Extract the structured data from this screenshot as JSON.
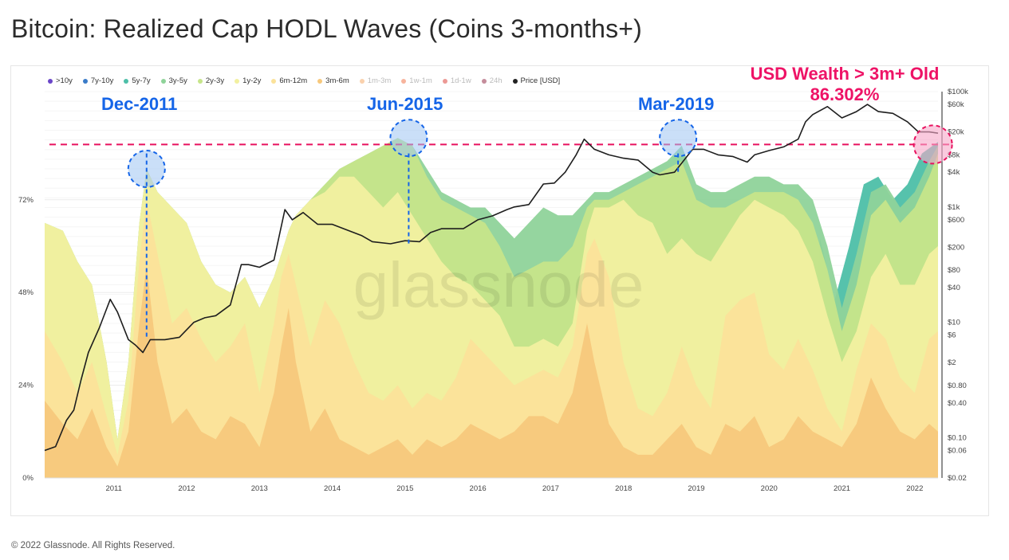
{
  "title": "Bitcoin: Realized Cap HODL Waves (Coins 3-months+)",
  "footer": "© 2022 Glassnode. All Rights Reserved.",
  "watermark": "glassnode",
  "legend": [
    {
      "label": ">10y",
      "color": "#6a45c8",
      "active": true
    },
    {
      "label": "7y-10y",
      "color": "#3a7bc8",
      "active": true
    },
    {
      "label": "5y-7y",
      "color": "#4dbfa8",
      "active": true
    },
    {
      "label": "3y-5y",
      "color": "#8fd39a",
      "active": true
    },
    {
      "label": "2y-3y",
      "color": "#c6e58a",
      "active": true
    },
    {
      "label": "1y-2y",
      "color": "#f2f0a0",
      "active": true
    },
    {
      "label": "6m-12m",
      "color": "#fbe29a",
      "active": true
    },
    {
      "label": "3m-6m",
      "color": "#f7c87c",
      "active": true
    },
    {
      "label": "1m-3m",
      "color": "#f5a35c",
      "active": false
    },
    {
      "label": "1w-1m",
      "color": "#f06a3b",
      "active": false
    },
    {
      "label": "1d-1w",
      "color": "#d9342b",
      "active": false
    },
    {
      "label": "24h",
      "color": "#8b1c3a",
      "active": false
    },
    {
      "label": "Price [USD]",
      "color": "#222222",
      "active": true
    }
  ],
  "annotations": {
    "dec2011": "Dec-2011",
    "jun2015": "Jun-2015",
    "mar2019": "Mar-2019",
    "wealth_line1": "USD Wealth > 3m+ Old",
    "wealth_line2": "86.302%"
  },
  "chart_data": {
    "type": "area",
    "title": "Bitcoin: Realized Cap HODL Waves (Coins 3-months+)",
    "x_ticks": [
      "2011",
      "2012",
      "2013",
      "2014",
      "2015",
      "2016",
      "2017",
      "2018",
      "2019",
      "2020",
      "2021",
      "2022"
    ],
    "x_range": [
      2010.55,
      2022.82
    ],
    "y_left_ticks": [
      "0%",
      "24%",
      "48%",
      "72%"
    ],
    "y_left_range": [
      0,
      100
    ],
    "y_right_ticks": [
      "$100k",
      "$60k",
      "$20k",
      "$8k",
      "$4k",
      "$1k",
      "$600",
      "$200",
      "$80",
      "$40",
      "$10",
      "$6",
      "$2",
      "$0.80",
      "$0.40",
      "$0.10",
      "$0.06",
      "$0.02"
    ],
    "y_right_range": [
      0.02,
      100000
    ],
    "threshold_pct": 86.302,
    "bands": [
      {
        "name": "3m-6m",
        "color": "#f7c87c",
        "x": [
          2010.55,
          2010.8,
          2011.0,
          2011.2,
          2011.4,
          2011.55,
          2011.7,
          2011.85,
          2011.95,
          2012.1,
          2012.3,
          2012.5,
          2012.7,
          2012.9,
          2013.1,
          2013.3,
          2013.5,
          2013.7,
          2013.8,
          2013.9,
          2014.0,
          2014.2,
          2014.4,
          2014.6,
          2014.8,
          2015.0,
          2015.2,
          2015.4,
          2015.6,
          2015.8,
          2016.0,
          2016.2,
          2016.4,
          2016.6,
          2016.8,
          2017.0,
          2017.2,
          2017.4,
          2017.6,
          2017.8,
          2018.0,
          2018.1,
          2018.3,
          2018.5,
          2018.7,
          2018.9,
          2019.1,
          2019.3,
          2019.5,
          2019.7,
          2019.9,
          2020.1,
          2020.3,
          2020.5,
          2020.7,
          2020.9,
          2021.1,
          2021.3,
          2021.5,
          2021.7,
          2021.9,
          2022.1,
          2022.3,
          2022.5,
          2022.7,
          2022.82
        ],
        "y": [
          20,
          14,
          10,
          18,
          8,
          3,
          12,
          40,
          55,
          30,
          14,
          18,
          12,
          10,
          16,
          14,
          8,
          22,
          34,
          44,
          30,
          12,
          18,
          10,
          8,
          6,
          8,
          10,
          6,
          10,
          8,
          10,
          14,
          12,
          10,
          12,
          16,
          16,
          14,
          22,
          40,
          30,
          14,
          8,
          6,
          6,
          10,
          14,
          8,
          6,
          14,
          12,
          16,
          8,
          10,
          16,
          12,
          10,
          8,
          14,
          26,
          18,
          12,
          10,
          14,
          12
        ]
      },
      {
        "name": "6m-12m",
        "color": "#fbe29a",
        "x": [
          2010.55,
          2010.8,
          2011.0,
          2011.2,
          2011.4,
          2011.55,
          2011.7,
          2011.85,
          2011.95,
          2012.1,
          2012.3,
          2012.5,
          2012.7,
          2012.9,
          2013.1,
          2013.3,
          2013.5,
          2013.7,
          2013.8,
          2013.9,
          2014.0,
          2014.2,
          2014.4,
          2014.6,
          2014.8,
          2015.0,
          2015.2,
          2015.4,
          2015.6,
          2015.8,
          2016.0,
          2016.2,
          2016.4,
          2016.6,
          2016.8,
          2017.0,
          2017.2,
          2017.4,
          2017.6,
          2017.8,
          2018.0,
          2018.1,
          2018.3,
          2018.5,
          2018.7,
          2018.9,
          2019.1,
          2019.3,
          2019.5,
          2019.7,
          2019.9,
          2020.1,
          2020.3,
          2020.5,
          2020.7,
          2020.9,
          2021.1,
          2021.3,
          2021.5,
          2021.7,
          2021.9,
          2022.1,
          2022.3,
          2022.5,
          2022.7,
          2022.82
        ],
        "y": [
          38,
          30,
          22,
          30,
          16,
          6,
          20,
          56,
          72,
          58,
          40,
          44,
          36,
          30,
          34,
          40,
          22,
          40,
          52,
          58,
          50,
          34,
          46,
          40,
          30,
          22,
          20,
          24,
          18,
          22,
          20,
          26,
          36,
          32,
          28,
          24,
          26,
          28,
          26,
          34,
          58,
          62,
          52,
          30,
          18,
          16,
          22,
          34,
          24,
          18,
          42,
          46,
          48,
          32,
          28,
          36,
          28,
          18,
          12,
          28,
          40,
          36,
          26,
          22,
          36,
          38
        ]
      },
      {
        "name": "1y-2y",
        "color": "#f2f0a0",
        "x": [
          2010.55,
          2010.8,
          2011.0,
          2011.2,
          2011.4,
          2011.55,
          2011.7,
          2011.85,
          2011.95,
          2012.1,
          2012.3,
          2012.5,
          2012.7,
          2012.9,
          2013.1,
          2013.3,
          2013.5,
          2013.7,
          2013.8,
          2013.9,
          2014.0,
          2014.2,
          2014.4,
          2014.6,
          2014.8,
          2015.0,
          2015.2,
          2015.4,
          2015.6,
          2015.8,
          2016.0,
          2016.2,
          2016.4,
          2016.6,
          2016.8,
          2017.0,
          2017.2,
          2017.4,
          2017.6,
          2017.8,
          2018.0,
          2018.1,
          2018.3,
          2018.5,
          2018.7,
          2018.9,
          2019.1,
          2019.3,
          2019.5,
          2019.7,
          2019.9,
          2020.1,
          2020.3,
          2020.5,
          2020.7,
          2020.9,
          2021.1,
          2021.3,
          2021.5,
          2021.7,
          2021.9,
          2022.1,
          2022.3,
          2022.5,
          2022.7,
          2022.82
        ],
        "y": [
          66,
          64,
          56,
          50,
          30,
          10,
          30,
          66,
          80,
          74,
          70,
          66,
          56,
          50,
          48,
          52,
          44,
          52,
          58,
          64,
          68,
          72,
          74,
          78,
          78,
          74,
          70,
          74,
          68,
          62,
          56,
          52,
          50,
          46,
          42,
          34,
          34,
          36,
          34,
          40,
          64,
          70,
          70,
          72,
          68,
          66,
          58,
          62,
          58,
          56,
          62,
          68,
          72,
          70,
          68,
          64,
          56,
          42,
          30,
          38,
          52,
          58,
          50,
          50,
          58,
          60
        ]
      },
      {
        "name": "2y-3y",
        "color": "#c6e58a",
        "x": [
          2010.55,
          2010.8,
          2011.0,
          2011.2,
          2011.4,
          2011.55,
          2011.7,
          2011.85,
          2011.95,
          2012.1,
          2012.3,
          2012.5,
          2012.7,
          2012.9,
          2013.1,
          2013.3,
          2013.5,
          2013.7,
          2013.8,
          2013.9,
          2014.0,
          2014.2,
          2014.4,
          2014.6,
          2014.8,
          2015.0,
          2015.2,
          2015.4,
          2015.6,
          2015.8,
          2016.0,
          2016.2,
          2016.4,
          2016.6,
          2016.8,
          2017.0,
          2017.2,
          2017.4,
          2017.6,
          2017.8,
          2018.0,
          2018.1,
          2018.3,
          2018.5,
          2018.7,
          2018.9,
          2019.1,
          2019.3,
          2019.5,
          2019.7,
          2019.9,
          2020.1,
          2020.3,
          2020.5,
          2020.7,
          2020.9,
          2021.1,
          2021.3,
          2021.5,
          2021.7,
          2021.9,
          2022.1,
          2022.3,
          2022.5,
          2022.7,
          2022.82
        ],
        "y": [
          66,
          64,
          56,
          50,
          30,
          10,
          30,
          66,
          80,
          74,
          70,
          66,
          56,
          50,
          48,
          52,
          44,
          52,
          58,
          64,
          68,
          72,
          76,
          80,
          82,
          84,
          86,
          88,
          86,
          78,
          72,
          70,
          68,
          66,
          60,
          52,
          54,
          56,
          56,
          60,
          70,
          72,
          72,
          74,
          76,
          78,
          80,
          82,
          72,
          70,
          70,
          72,
          74,
          74,
          74,
          72,
          66,
          54,
          38,
          50,
          68,
          72,
          66,
          70,
          78,
          84
        ]
      },
      {
        "name": "3y-5y",
        "color": "#8fd39a",
        "x": [
          2010.55,
          2010.8,
          2011.0,
          2011.2,
          2011.4,
          2011.55,
          2011.7,
          2011.85,
          2011.95,
          2012.1,
          2012.3,
          2012.5,
          2012.7,
          2012.9,
          2013.1,
          2013.3,
          2013.5,
          2013.7,
          2013.8,
          2013.9,
          2014.0,
          2014.2,
          2014.4,
          2014.6,
          2014.8,
          2015.0,
          2015.2,
          2015.4,
          2015.6,
          2015.8,
          2016.0,
          2016.2,
          2016.4,
          2016.6,
          2016.8,
          2017.0,
          2017.2,
          2017.4,
          2017.6,
          2017.8,
          2018.0,
          2018.1,
          2018.3,
          2018.5,
          2018.7,
          2018.9,
          2019.1,
          2019.3,
          2019.5,
          2019.7,
          2019.9,
          2020.1,
          2020.3,
          2020.5,
          2020.7,
          2020.9,
          2021.1,
          2021.3,
          2021.5,
          2021.7,
          2021.9,
          2022.1,
          2022.3,
          2022.5,
          2022.7,
          2022.82
        ],
        "y": [
          66,
          64,
          56,
          50,
          30,
          10,
          30,
          66,
          80,
          74,
          70,
          66,
          56,
          50,
          48,
          52,
          44,
          52,
          58,
          64,
          68,
          72,
          76,
          80,
          82,
          84,
          86,
          88,
          86,
          80,
          74,
          72,
          70,
          70,
          66,
          62,
          66,
          70,
          68,
          68,
          72,
          74,
          74,
          76,
          78,
          80,
          82,
          86,
          76,
          74,
          74,
          76,
          78,
          78,
          76,
          76,
          72,
          60,
          44,
          58,
          74,
          76,
          70,
          74,
          82,
          86
        ]
      },
      {
        "name": "5y-7y",
        "color": "#4dbfa8",
        "x": [
          2019.4,
          2019.6,
          2019.9,
          2020.2,
          2020.6,
          2021.0,
          2021.2,
          2021.4,
          2021.6,
          2021.8,
          2022.0,
          2022.2,
          2022.4,
          2022.6,
          2022.82
        ],
        "y": [
          0,
          0,
          0,
          0,
          0,
          0,
          62,
          46,
          60,
          76,
          78,
          72,
          76,
          84,
          87
        ]
      }
    ],
    "price": {
      "name": "Price [USD]",
      "x": [
        2010.55,
        2010.7,
        2010.85,
        2010.95,
        2011.05,
        2011.15,
        2011.3,
        2011.45,
        2011.55,
        2011.7,
        2011.8,
        2011.9,
        2012.0,
        2012.2,
        2012.4,
        2012.6,
        2012.75,
        2012.9,
        2013.1,
        2013.25,
        2013.35,
        2013.5,
        2013.7,
        2013.85,
        2013.95,
        2014.1,
        2014.3,
        2014.5,
        2014.7,
        2014.9,
        2015.05,
        2015.3,
        2015.5,
        2015.7,
        2015.85,
        2016.0,
        2016.3,
        2016.5,
        2016.7,
        2016.9,
        2017.0,
        2017.2,
        2017.4,
        2017.55,
        2017.7,
        2017.85,
        2017.96,
        2018.1,
        2018.3,
        2018.5,
        2018.7,
        2018.9,
        2019.0,
        2019.2,
        2019.45,
        2019.6,
        2019.8,
        2020.0,
        2020.2,
        2020.3,
        2020.5,
        2020.7,
        2020.9,
        2021.0,
        2021.1,
        2021.3,
        2021.5,
        2021.7,
        2021.85,
        2022.0,
        2022.2,
        2022.4,
        2022.55,
        2022.7,
        2022.82
      ],
      "y": [
        0.06,
        0.07,
        0.2,
        0.3,
        1,
        3,
        8,
        25,
        15,
        5,
        4,
        3,
        5,
        5,
        5.5,
        10,
        12,
        13,
        20,
        100,
        100,
        90,
        120,
        900,
        600,
        800,
        500,
        500,
        400,
        320,
        250,
        230,
        260,
        250,
        360,
        420,
        420,
        600,
        700,
        900,
        1000,
        1100,
        2500,
        2600,
        4000,
        8000,
        15000,
        10000,
        8000,
        7000,
        6500,
        4000,
        3600,
        4000,
        10000,
        10000,
        8000,
        7500,
        6000,
        8000,
        9500,
        11000,
        15000,
        30000,
        40000,
        55000,
        35000,
        45000,
        60000,
        45000,
        42000,
        30000,
        20000,
        20000,
        19000
      ]
    }
  }
}
